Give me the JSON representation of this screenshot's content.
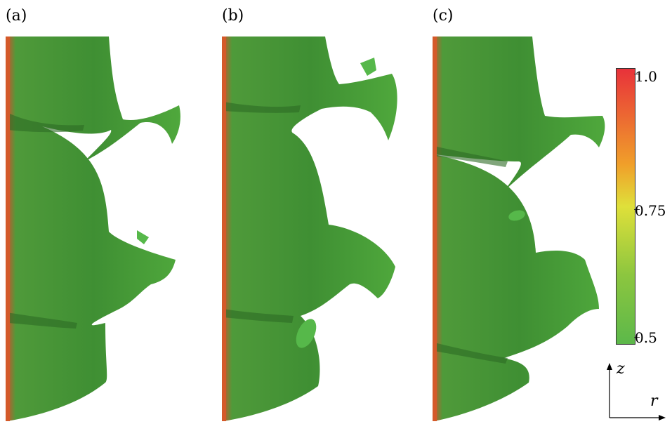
{
  "panels": [
    {
      "label": "(a)"
    },
    {
      "label": "(b)"
    },
    {
      "label": "(c)"
    }
  ],
  "colorbar": {
    "ticks": [
      "1.0",
      "0.75",
      "0.5"
    ],
    "colors": [
      "#e8323a",
      "#f0a02a",
      "#dfe03a",
      "#8cc63f",
      "#5cb84a"
    ]
  },
  "axes": {
    "vertical": "z",
    "horizontal": "r"
  }
}
